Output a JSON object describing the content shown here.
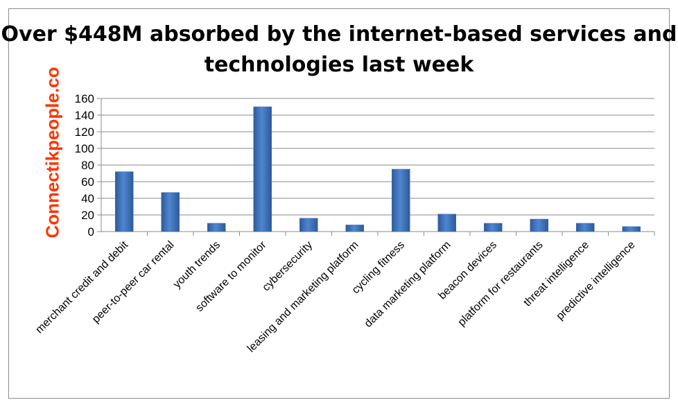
{
  "chart_data": {
    "type": "bar",
    "title": "Over $448M absorbed by the internet-based services and technologies last week",
    "watermark": "Connectikpeople.co",
    "categories": [
      "merchant credit and debit",
      "peer-to-peer car rental",
      "youth trends",
      "software to monitor",
      "cybersecurity",
      "leasing and marketing platform",
      "cycling fitness",
      "data marketing platform",
      "beacon devices",
      "platform for restaurants",
      "threat intelligence",
      "predictive intelligence"
    ],
    "values": [
      72,
      47,
      10,
      150,
      16,
      8,
      75,
      21,
      10,
      15,
      10,
      6
    ],
    "ylim": [
      0,
      160
    ],
    "yticks": [
      "0",
      "20",
      "40",
      "60",
      "80",
      "100",
      "120",
      "140",
      "160"
    ],
    "grid": true,
    "legend": "none",
    "bar_color": "#3f6fb5"
  }
}
